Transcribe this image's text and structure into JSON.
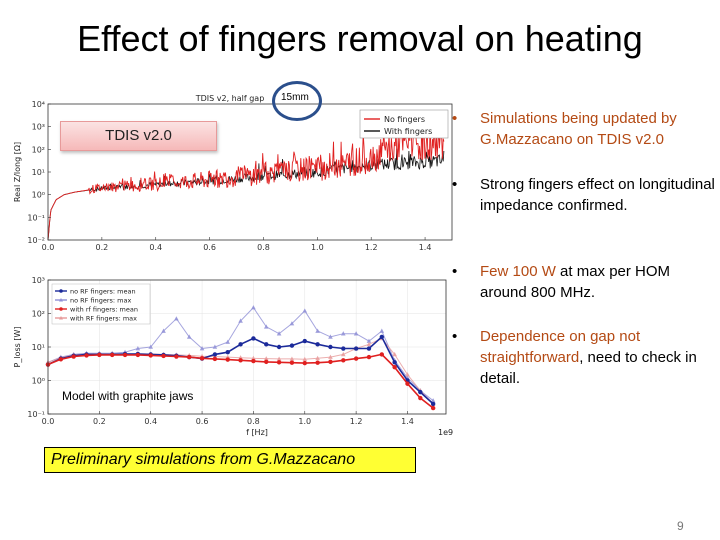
{
  "slide": {
    "title": "Effect of fingers removal on heating",
    "page_number": "9"
  },
  "callouts": {
    "tdis_label": "TDIS v2.0",
    "gap_label": "15mm",
    "graphite_label": "Model with graphite jaws",
    "preliminary_note": "Preliminary simulations from G.Mazzacano"
  },
  "bullets": [
    {
      "bullet": "•",
      "text": "Simulations being updated by G.Mazzacano on TDIS v2.0"
    },
    {
      "bullet": "•",
      "text": "Strong fingers effect on longitudinal impedance confirmed."
    },
    {
      "bullet": "•",
      "highlight": "Few 100 W",
      "text": " at max per HOM around 800 MHz."
    },
    {
      "bullet": "•",
      "highlight": "Dependence on gap not straightforward",
      "text": ", need to check in detail."
    }
  ],
  "colors": {
    "accent": "#b44a14",
    "red_series": "#e02020",
    "blue_series": "#1b2a9a",
    "light_blue": "#8f8fd6",
    "light_red": "#e79a9a"
  },
  "chart_data": [
    {
      "type": "line",
      "title": "TDIS v2, half gap",
      "xlabel": "",
      "ylabel": "Real Z/long [Ω]",
      "x_scale": "linear",
      "y_scale": "log",
      "xlim": [
        0,
        1.5
      ],
      "ylim": [
        0.01,
        10000
      ],
      "x_ticks": [
        "0.0",
        "0.2",
        "0.4",
        "0.6",
        "0.8",
        "1.0",
        "1.2",
        "1.4"
      ],
      "y_ticks": [
        "10⁻²",
        "10⁻¹",
        "10⁰",
        "10¹",
        "10²",
        "10³",
        "10⁴"
      ],
      "series": [
        {
          "name": "No fingers",
          "color": "#e02020",
          "x": [
            0.0,
            0.01,
            0.03,
            0.06,
            0.1,
            0.2,
            0.4,
            0.6,
            0.8,
            1.0,
            1.2,
            1.3,
            1.45
          ],
          "y": [
            0.01,
            0.2,
            0.6,
            1.0,
            1.3,
            2.0,
            3.0,
            4.5,
            8.0,
            14,
            40,
            150,
            200
          ]
        },
        {
          "name": "With fingers",
          "color": "#111111",
          "x": [
            0.0,
            0.01,
            0.03,
            0.06,
            0.1,
            0.2,
            0.4,
            0.6,
            0.8,
            1.0,
            1.2,
            1.45
          ],
          "y": [
            0.01,
            0.2,
            0.6,
            1.0,
            1.3,
            1.9,
            2.8,
            4.0,
            6.5,
            10,
            20,
            30
          ]
        }
      ]
    },
    {
      "type": "line",
      "title": "",
      "xlabel": "f [Hz]",
      "ylabel": "P_loss [W]",
      "x_unit_suffix": "1e9",
      "x_scale": "linear",
      "y_scale": "log",
      "xlim": [
        0,
        1.55
      ],
      "ylim": [
        0.1,
        1000
      ],
      "x_ticks": [
        "0.0",
        "0.2",
        "0.4",
        "0.6",
        "0.8",
        "1.0",
        "1.2",
        "1.4"
      ],
      "y_ticks": [
        "10⁻¹",
        "10⁰",
        "10¹",
        "10²",
        "10³"
      ],
      "x": [
        0.0,
        0.05,
        0.1,
        0.15,
        0.2,
        0.25,
        0.3,
        0.35,
        0.4,
        0.45,
        0.5,
        0.55,
        0.6,
        0.65,
        0.7,
        0.75,
        0.8,
        0.85,
        0.9,
        0.95,
        1.0,
        1.05,
        1.1,
        1.15,
        1.2,
        1.25,
        1.3,
        1.35,
        1.4,
        1.45,
        1.5
      ],
      "series": [
        {
          "name": "no RF fingers: mean",
          "color": "#1b2a9a",
          "y": [
            3.0,
            4.5,
            5.5,
            6.0,
            6.0,
            6.0,
            6.2,
            6.2,
            6.0,
            5.8,
            5.5,
            5.0,
            4.5,
            6.0,
            7.0,
            12,
            18,
            12,
            10,
            11,
            15,
            12,
            10,
            9,
            9,
            9,
            20,
            3.5,
            1.0,
            0.45,
            0.2
          ]
        },
        {
          "name": "no RF fingers: max",
          "color": "#8f8fd6",
          "y": [
            3.5,
            5.0,
            6.0,
            6.5,
            6.5,
            6.5,
            7.0,
            9.0,
            10,
            30,
            70,
            20,
            9,
            10,
            14,
            60,
            150,
            40,
            25,
            50,
            120,
            30,
            20,
            25,
            25,
            15,
            30,
            4.0,
            1.2,
            0.5,
            0.25
          ]
        },
        {
          "name": "with rf fingers: mean",
          "color": "#e02020",
          "y": [
            3.0,
            4.3,
            5.2,
            5.6,
            5.8,
            5.8,
            5.8,
            5.8,
            5.6,
            5.4,
            5.2,
            5.0,
            4.6,
            4.4,
            4.2,
            4.0,
            3.8,
            3.6,
            3.5,
            3.4,
            3.3,
            3.4,
            3.6,
            4.0,
            4.5,
            5.0,
            6.0,
            2.5,
            0.8,
            0.3,
            0.15
          ]
        },
        {
          "name": "with RF fingers: max",
          "color": "#e79a9a",
          "y": [
            3.5,
            4.8,
            5.8,
            6.2,
            6.3,
            6.3,
            6.3,
            6.3,
            6.2,
            6.0,
            5.8,
            5.6,
            5.3,
            5.2,
            5.0,
            4.8,
            4.6,
            4.5,
            4.4,
            4.4,
            4.3,
            4.6,
            5.0,
            6.0,
            9.0,
            12,
            18,
            6.0,
            1.5,
            0.5,
            0.2
          ]
        }
      ]
    }
  ]
}
